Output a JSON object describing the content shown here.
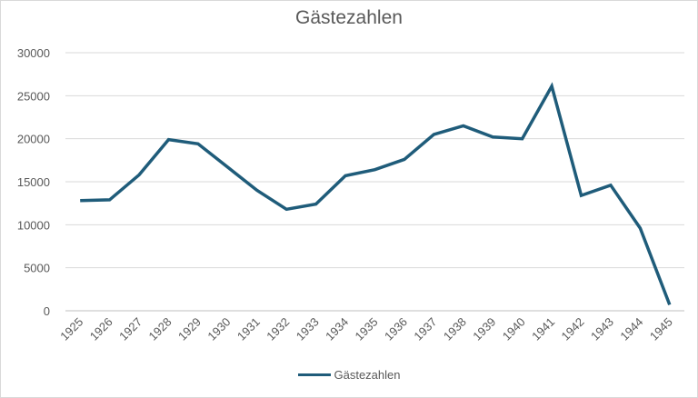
{
  "chart_data": {
    "type": "line",
    "title": "Gästezahlen",
    "xlabel": "",
    "ylabel": "",
    "categories": [
      "1925",
      "1926",
      "1927",
      "1928",
      "1929",
      "1930",
      "1931",
      "1932",
      "1933",
      "1934",
      "1935",
      "1936",
      "1937",
      "1938",
      "1939",
      "1940",
      "1941",
      "1942",
      "1943",
      "1944",
      "1945"
    ],
    "series": [
      {
        "name": "Gästezahlen",
        "color": "#1f5c7a",
        "values": [
          12800,
          12900,
          15800,
          19900,
          19400,
          16700,
          14000,
          11800,
          12400,
          15700,
          16400,
          17600,
          20500,
          21500,
          20200,
          20000,
          26100,
          13400,
          14600,
          9600,
          700
        ]
      }
    ],
    "ylim": [
      0,
      30000
    ],
    "yticks": [
      0,
      5000,
      10000,
      15000,
      20000,
      25000,
      30000
    ],
    "grid": true,
    "legend_position": "bottom"
  }
}
